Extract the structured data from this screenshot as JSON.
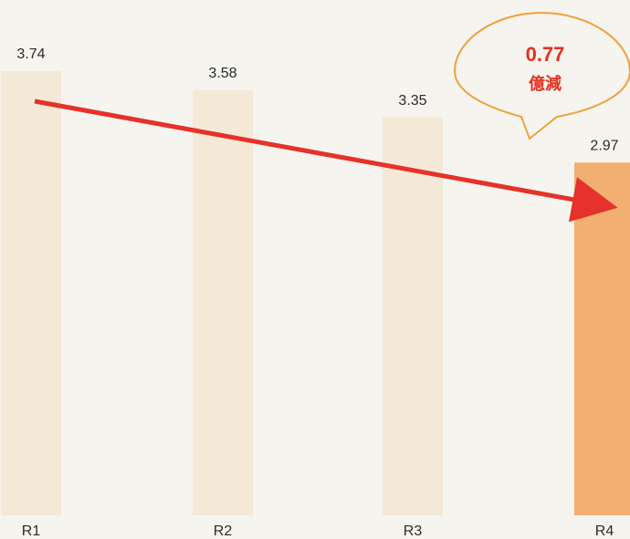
{
  "chart_data": {
    "type": "bar",
    "categories": [
      "R1",
      "R2",
      "R3",
      "R4"
    ],
    "values": [
      3.74,
      3.58,
      3.35,
      2.97
    ],
    "value_labels": [
      "3.74",
      "3.58",
      "3.35",
      "2.97"
    ],
    "ylim": [
      0,
      3.74
    ],
    "grid": false,
    "highlight_index": 3,
    "colors": {
      "bar": "#f4e8d7",
      "bar_highlight": "#f3ae72",
      "arrow": "#e5322a",
      "callout_border": "#f0a23c",
      "callout_text": "#e8301f"
    },
    "annotation": {
      "value": "0.77",
      "unit": "億減"
    }
  }
}
